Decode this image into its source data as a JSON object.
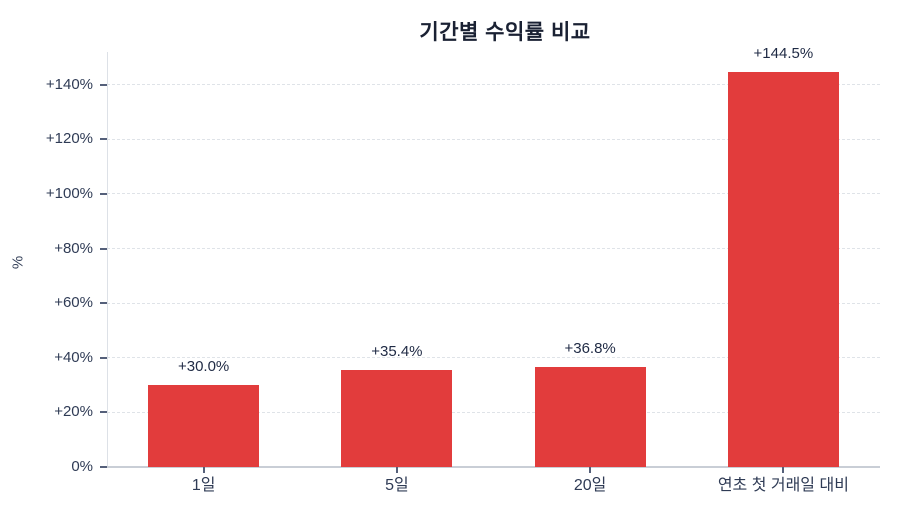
{
  "header": {
    "title": "기간별 수익률 비교"
  },
  "colors": {
    "bar": "#e23c3c",
    "title_text": "#1a2133",
    "tick_text": "#2f3b55",
    "value_label_text": "#1f2a44",
    "gridline": "#dfe3e8",
    "x_axis_line": "#c9ced6",
    "y_axis_line": "#dde1e7",
    "background": "#ffffff"
  },
  "chart_data": {
    "type": "bar",
    "title": "기간별 수익률 비교",
    "xlabel": "",
    "ylabel": "%",
    "categories": [
      "1일",
      "5일",
      "20일",
      "연초 첫 거래일 대비"
    ],
    "values": [
      30.0,
      35.4,
      36.8,
      144.5
    ],
    "value_labels": [
      "+30.0%",
      "+35.4%",
      "+36.8%",
      "+144.5%"
    ],
    "yticks": [
      0,
      20,
      40,
      60,
      80,
      100,
      120,
      140
    ],
    "ytick_labels": [
      "0%",
      "+20%",
      "+40%",
      "+60%",
      "+80%",
      "+100%",
      "+120%",
      "+140%"
    ],
    "ylim": [
      0,
      152
    ],
    "grid": "horizontal-dashed",
    "legend": "none",
    "bar_color": "#e23c3c"
  }
}
